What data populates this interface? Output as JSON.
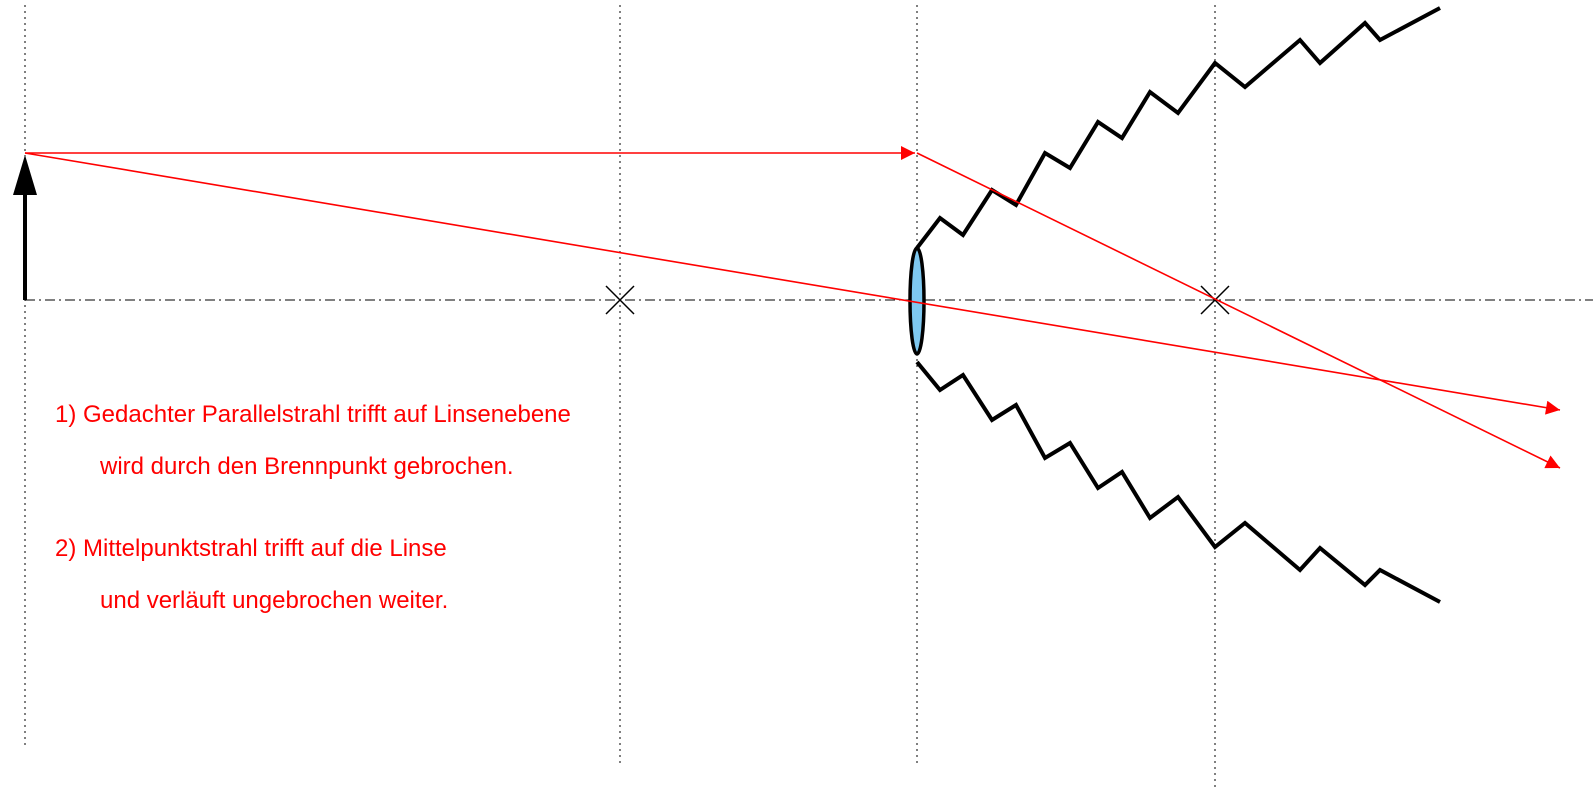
{
  "steps": [
    {
      "lines": [
        "1) Gedachter Parallelstrahl trifft auf Linsenebene",
        "wird durch den Brennpunkt gebrochen."
      ]
    },
    {
      "lines": [
        "2) Mittelpunktstrahl trifft auf die Linse",
        "und verläuft ungebrochen weiter."
      ]
    }
  ]
}
